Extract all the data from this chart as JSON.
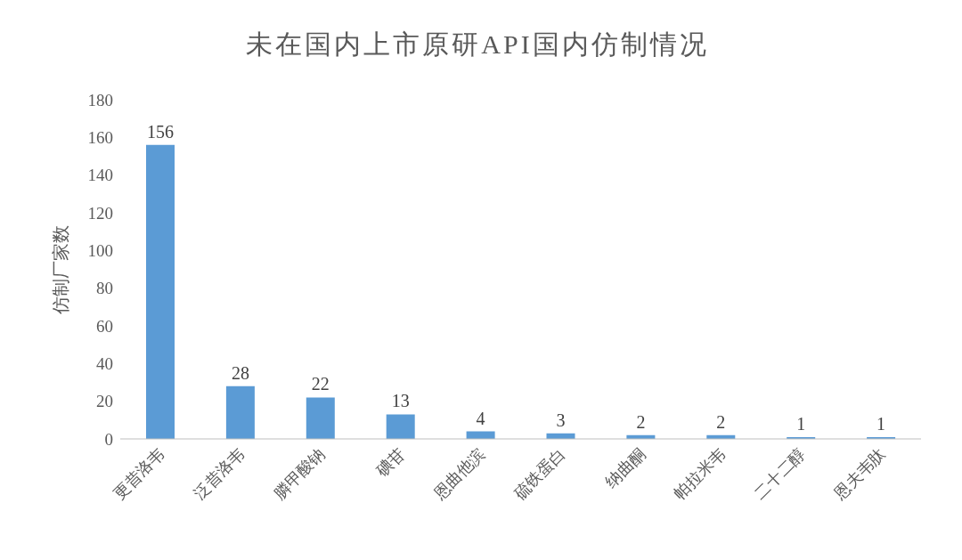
{
  "chart_data": {
    "type": "bar",
    "title": "未在国内上市原研API国内仿制情况",
    "ylabel": "仿制厂家数",
    "categories": [
      "更昔洛韦",
      "泛昔洛韦",
      "膦甲酸钠",
      "碘苷",
      "恩曲他滨",
      "硫铁蛋白",
      "纳曲酮",
      "帕拉米韦",
      "二十二醇",
      "恩夫韦肽"
    ],
    "values": [
      156,
      28,
      22,
      13,
      4,
      3,
      2,
      2,
      1,
      1
    ],
    "color": "#5b9bd5",
    "ylim": [
      0,
      180
    ],
    "yticks": [
      0,
      20,
      40,
      60,
      80,
      100,
      120,
      140,
      160,
      180
    ],
    "grid": false,
    "data_labels": true
  }
}
